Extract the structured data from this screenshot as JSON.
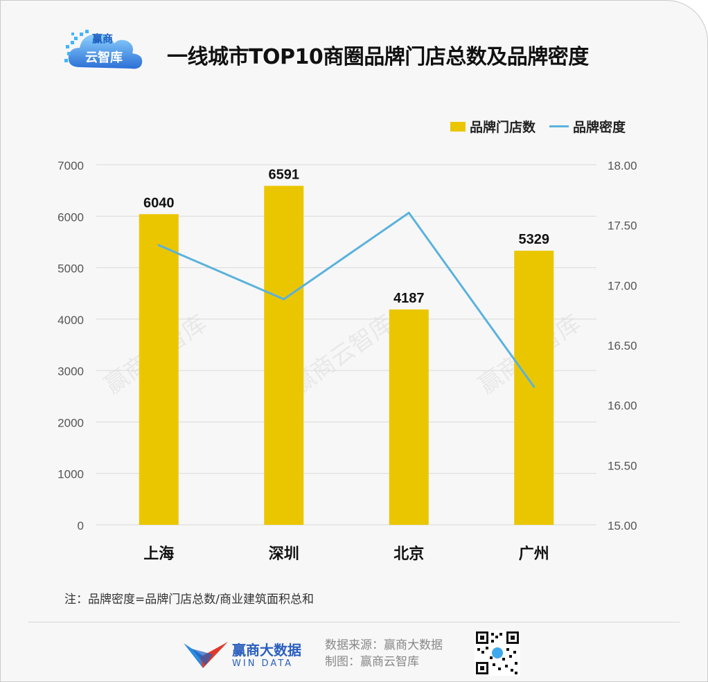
{
  "header": {
    "logo_text_line1": "赢商",
    "logo_text_line2": "云智库",
    "title": "一线城市TOP10商圈品牌门店总数及品牌密度"
  },
  "legend": {
    "bar_label": "品牌门店数",
    "line_label": "品牌密度"
  },
  "chart_data": {
    "type": "bar",
    "categories": [
      "上海",
      "深圳",
      "北京",
      "广州"
    ],
    "series": [
      {
        "name": "品牌门店数",
        "type": "bar",
        "axis": "left",
        "values": [
          6040,
          6591,
          4187,
          5329
        ],
        "color": "#eac600"
      },
      {
        "name": "品牌密度",
        "type": "line",
        "axis": "right",
        "values": [
          17.33,
          16.88,
          17.6,
          16.15
        ],
        "color": "#5ab2dc"
      }
    ],
    "bar_data_labels": [
      "6040",
      "6591",
      "4187",
      "5329"
    ],
    "y_left": {
      "min": 0,
      "max": 7000,
      "ticks": [
        "0",
        "1000",
        "2000",
        "3000",
        "4000",
        "5000",
        "6000",
        "7000"
      ]
    },
    "y_right": {
      "min": 15,
      "max": 18,
      "ticks": [
        "15.00",
        "15.50",
        "16.00",
        "16.50",
        "17.00",
        "17.50",
        "18.00"
      ]
    },
    "grid": true,
    "legend_position": "top-right",
    "watermark": "赢商云智库"
  },
  "note": "注：品牌密度=品牌门店总数/商业建筑面积总和",
  "footer": {
    "brand_name": "赢商大数据",
    "brand_sub": "WIN DATA",
    "source_line": "数据来源：赢商大数据",
    "made_by_line": "制图：赢商云智库"
  }
}
